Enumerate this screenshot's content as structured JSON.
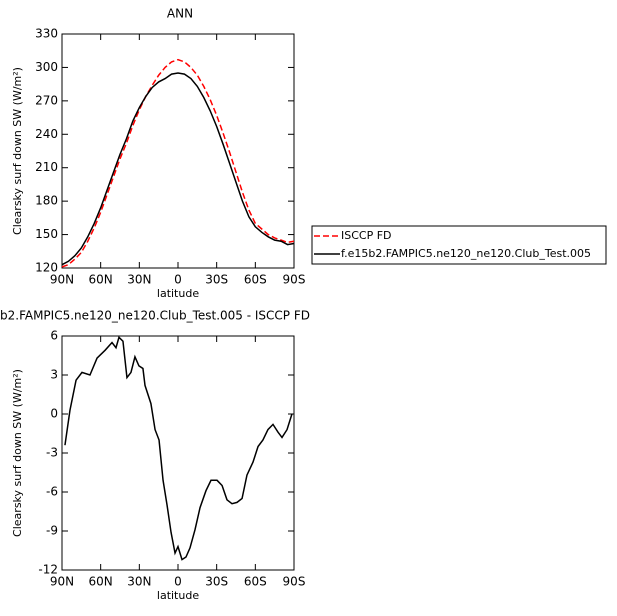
{
  "chart_data": [
    {
      "type": "line",
      "title": "ANN",
      "xlabel": "latitude",
      "ylabel": "Clearsky surf down SW (W/m²)",
      "x": [
        90,
        85,
        80,
        75,
        70,
        65,
        60,
        55,
        50,
        45,
        40,
        35,
        30,
        25,
        20,
        15,
        10,
        5,
        0,
        -5,
        -10,
        -15,
        -20,
        -25,
        -30,
        -35,
        -40,
        -45,
        -50,
        -55,
        -60,
        -65,
        -70,
        -75,
        -80,
        -85,
        -90
      ],
      "series": [
        {
          "name": "ISCCP FD",
          "color": "#ff0000",
          "dash": true,
          "values": [
            121,
            123,
            128,
            134,
            144,
            156,
            170,
            186,
            202,
            218,
            232,
            248,
            262,
            274,
            284,
            293,
            300,
            305,
            307,
            305,
            300,
            293,
            283,
            271,
            257,
            241,
            224,
            206,
            188,
            172,
            160,
            155,
            150,
            147,
            145,
            143,
            144
          ]
        },
        {
          "name": "f.e15b2.FAMPIC5.ne120_ne120.Club_Test.005",
          "color": "#000000",
          "dash": false,
          "values": [
            123,
            126,
            131,
            138,
            148,
            160,
            174,
            190,
            206,
            222,
            236,
            252,
            264,
            274,
            282,
            287,
            290,
            294,
            295,
            294,
            290,
            283,
            273,
            261,
            247,
            231,
            214,
            197,
            180,
            166,
            157,
            152,
            148,
            145,
            144,
            141,
            142
          ]
        }
      ],
      "xlim": [
        90,
        -90
      ],
      "xticks": [
        {
          "value": 90,
          "label": "90N"
        },
        {
          "value": 60,
          "label": "60N"
        },
        {
          "value": 30,
          "label": "30N"
        },
        0,
        {
          "value": -30,
          "label": "30S"
        },
        {
          "value": -60,
          "label": "60S"
        },
        {
          "value": -90,
          "label": "90S"
        }
      ],
      "ylim": [
        120,
        330
      ],
      "yticks": [
        120,
        150,
        180,
        210,
        240,
        270,
        300,
        330
      ],
      "legend": "right"
    },
    {
      "type": "line",
      "title": "b2.FAMPIC5.ne120_ne120.Club_Test.005 - ISCCP FD",
      "xlabel": "latitude",
      "ylabel": "Clearsky surf down SW (W/m²)",
      "x": [
        87.7,
        83.8,
        79.1,
        74.5,
        68.3,
        62.8,
        56.6,
        51.2,
        48.1,
        45.8,
        42.7,
        39.6,
        36.5,
        33.4,
        30.3,
        27.2,
        25.6,
        21.0,
        17.8,
        14.7,
        11.6,
        8.5,
        5.4,
        2.3,
        0,
        -3.1,
        -6.2,
        -9.3,
        -13.2,
        -17.1,
        -21.7,
        -25.6,
        -30.3,
        -34.2,
        -38.0,
        -41.9,
        -45.8,
        -49.7,
        -53.5,
        -58.2,
        -62.1,
        -65.9,
        -69.8,
        -73.7,
        -77.6,
        -80.7,
        -84.6,
        -88.4
      ],
      "series": [
        {
          "color": "#000000",
          "values": [
            -2.4,
            0.3,
            2.6,
            3.2,
            3.0,
            4.3,
            4.9,
            5.5,
            5.1,
            5.9,
            5.6,
            2.8,
            3.2,
            4.4,
            3.7,
            3.5,
            2.2,
            0.8,
            -1.2,
            -2.0,
            -5.1,
            -7.0,
            -9.1,
            -10.7,
            -10.2,
            -11.2,
            -11.0,
            -10.3,
            -8.9,
            -7.2,
            -5.9,
            -5.1,
            -5.1,
            -5.5,
            -6.6,
            -6.9,
            -6.8,
            -6.5,
            -4.7,
            -3.7,
            -2.5,
            -2.0,
            -1.2,
            -0.8,
            -1.4,
            -1.8,
            -1.2,
            0.0
          ]
        }
      ],
      "xlim": [
        90,
        -90
      ],
      "xticks": [
        {
          "value": 90,
          "label": "90N"
        },
        {
          "value": 60,
          "label": "60N"
        },
        {
          "value": 30,
          "label": "30N"
        },
        0,
        {
          "value": -30,
          "label": "30S"
        },
        {
          "value": -60,
          "label": "60S"
        },
        {
          "value": -90,
          "label": "90S"
        }
      ],
      "ylim": [
        -12,
        6
      ],
      "yticks": [
        -12,
        -9,
        -6,
        -3,
        0,
        3,
        6
      ]
    }
  ]
}
